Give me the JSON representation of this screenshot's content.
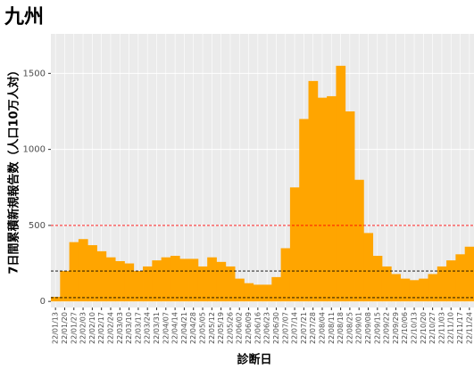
{
  "chart_data": {
    "type": "bar",
    "title": "九州",
    "x_label": "診断日",
    "y_label": "7日間累積新規報告数（人口10万人対）",
    "categories": [
      "22/01/13",
      "22/01/20",
      "22/01/27",
      "22/02/03",
      "22/02/10",
      "22/02/17",
      "22/02/24",
      "22/03/03",
      "22/03/10",
      "22/03/17",
      "22/03/24",
      "22/03/31",
      "22/04/07",
      "22/04/14",
      "22/04/21",
      "22/04/28",
      "22/05/05",
      "22/05/12",
      "22/05/19",
      "22/05/26",
      "22/06/02",
      "22/06/09",
      "22/06/16",
      "22/06/23",
      "22/06/30",
      "22/07/07",
      "22/07/14",
      "22/07/21",
      "22/07/28",
      "22/08/04",
      "22/08/11",
      "22/08/18",
      "22/08/25",
      "22/09/01",
      "22/09/08",
      "22/09/15",
      "22/09/22",
      "22/09/29",
      "22/10/06",
      "22/10/13",
      "22/10/20",
      "22/10/27",
      "22/11/03",
      "22/11/10",
      "22/11/17",
      "22/11/24"
    ],
    "values": [
      30,
      200,
      390,
      410,
      370,
      330,
      290,
      265,
      250,
      200,
      230,
      270,
      290,
      300,
      280,
      280,
      230,
      290,
      260,
      230,
      150,
      120,
      110,
      110,
      160,
      350,
      750,
      1200,
      1450,
      1340,
      1350,
      1550,
      1250,
      800,
      450,
      300,
      230,
      180,
      150,
      140,
      150,
      180,
      230,
      270,
      310,
      360
    ],
    "color": "#FFA500",
    "ylim": [
      -40,
      1760
    ],
    "yticks": [
      0,
      500,
      1000,
      1500
    ],
    "grid": true,
    "hlines": [
      {
        "value": 500,
        "color": "#ff0000"
      },
      {
        "value": 200,
        "color": "#000000"
      },
      {
        "value": 25,
        "color": "#000000"
      }
    ]
  }
}
